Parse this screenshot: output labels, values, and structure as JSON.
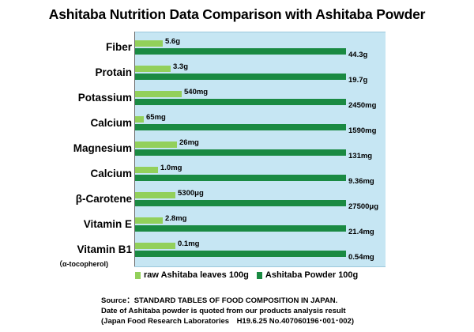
{
  "chart_data": {
    "type": "bar",
    "orientation": "horizontal",
    "title": "Ashitaba Nutrition Data Comparison with Ashitaba Powder",
    "categories": [
      "Fiber",
      "Protain",
      "Potassium",
      "Calcium",
      "Magnesium",
      "Calcium",
      "β-Carotene",
      "Vitamin E",
      "Vitamin B1"
    ],
    "category_note": "（α-tocopherol)",
    "series": [
      {
        "name": "raw Ashitaba leaves 100g",
        "color": "#92d05a",
        "value_labels": [
          "5.6g",
          "3.3g",
          "540mg",
          "65mg",
          "26mg",
          "1.0mg",
          "5300μg",
          "2.8mg",
          "0.1mg"
        ]
      },
      {
        "name": "Ashitaba Powder 100g",
        "color": "#1a8a42",
        "value_labels": [
          "44.3g",
          "19.7g",
          "2450mg",
          "1590mg",
          "131mg",
          "9.36mg",
          "27500μg",
          "21.4mg",
          "0.54mg"
        ]
      }
    ],
    "raw_fraction_of_powder": [
      0.13,
      0.17,
      0.22,
      0.04,
      0.2,
      0.11,
      0.19,
      0.13,
      0.19
    ],
    "legend": "bottom"
  },
  "source": {
    "line1": "Source：STANDARD TABLES OF FOOD COMPOSITION IN JAPAN.",
    "line2": "Date of Ashitaba powder is quoted from our products analysis result",
    "line3": "(Japan Food Research Laboratories　H19.6.25 No.407060196･001･002)"
  }
}
